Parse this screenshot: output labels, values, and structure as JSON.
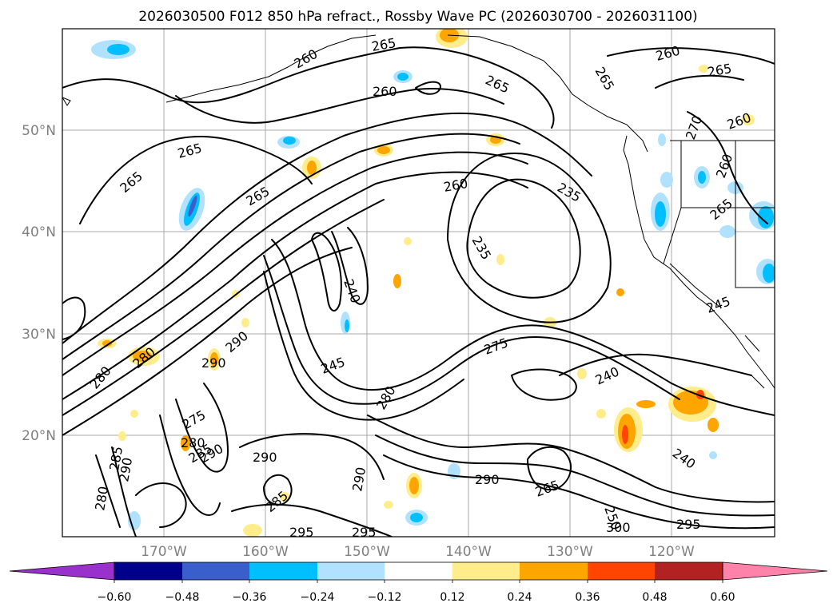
{
  "title": "2026030500 F012 850 hPa refract., Rossby Wave PC (2026030700 - 2026031100)",
  "lat_labels": [
    "50°N",
    "40°N",
    "30°N",
    "20°N"
  ],
  "lon_labels": [
    "170°W",
    "160°W",
    "150°W",
    "140°W",
    "130°W",
    "120°W"
  ],
  "colorbar": {
    "ticks": [
      "−0.60",
      "−0.48",
      "−0.36",
      "−0.24",
      "−0.12",
      "0.12",
      "0.24",
      "0.36",
      "0.48",
      "0.60"
    ],
    "colors": [
      "#9932cc",
      "#00008b",
      "#3a5fcd",
      "#00bfff",
      "#b0e2ff",
      "#ffffff",
      "#ffec8b",
      "#ffa500",
      "#ff4500",
      "#b22222",
      "#ff82ab"
    ]
  },
  "contour_labels": [
    "260",
    "265",
    "260",
    "265",
    "260",
    "265",
    "260",
    "265",
    "265",
    "265",
    "265",
    "260",
    "235",
    "235",
    "270",
    "265",
    "260",
    "245",
    "240",
    "290",
    "280",
    "280",
    "245",
    "280",
    "275",
    "240",
    "240",
    "290",
    "275",
    "280",
    "285",
    "290",
    "285",
    "290",
    "290",
    "290",
    "265",
    "250",
    "285",
    "280",
    "295",
    "295",
    "300",
    "295",
    "290"
  ],
  "shading_colors": {
    "blue_light": "#b0e2ff",
    "blue": "#00bfff",
    "blue_dark": "#3a5fcd",
    "yellow": "#ffec8b",
    "orange": "#ffa500",
    "red": "#ff4500"
  }
}
